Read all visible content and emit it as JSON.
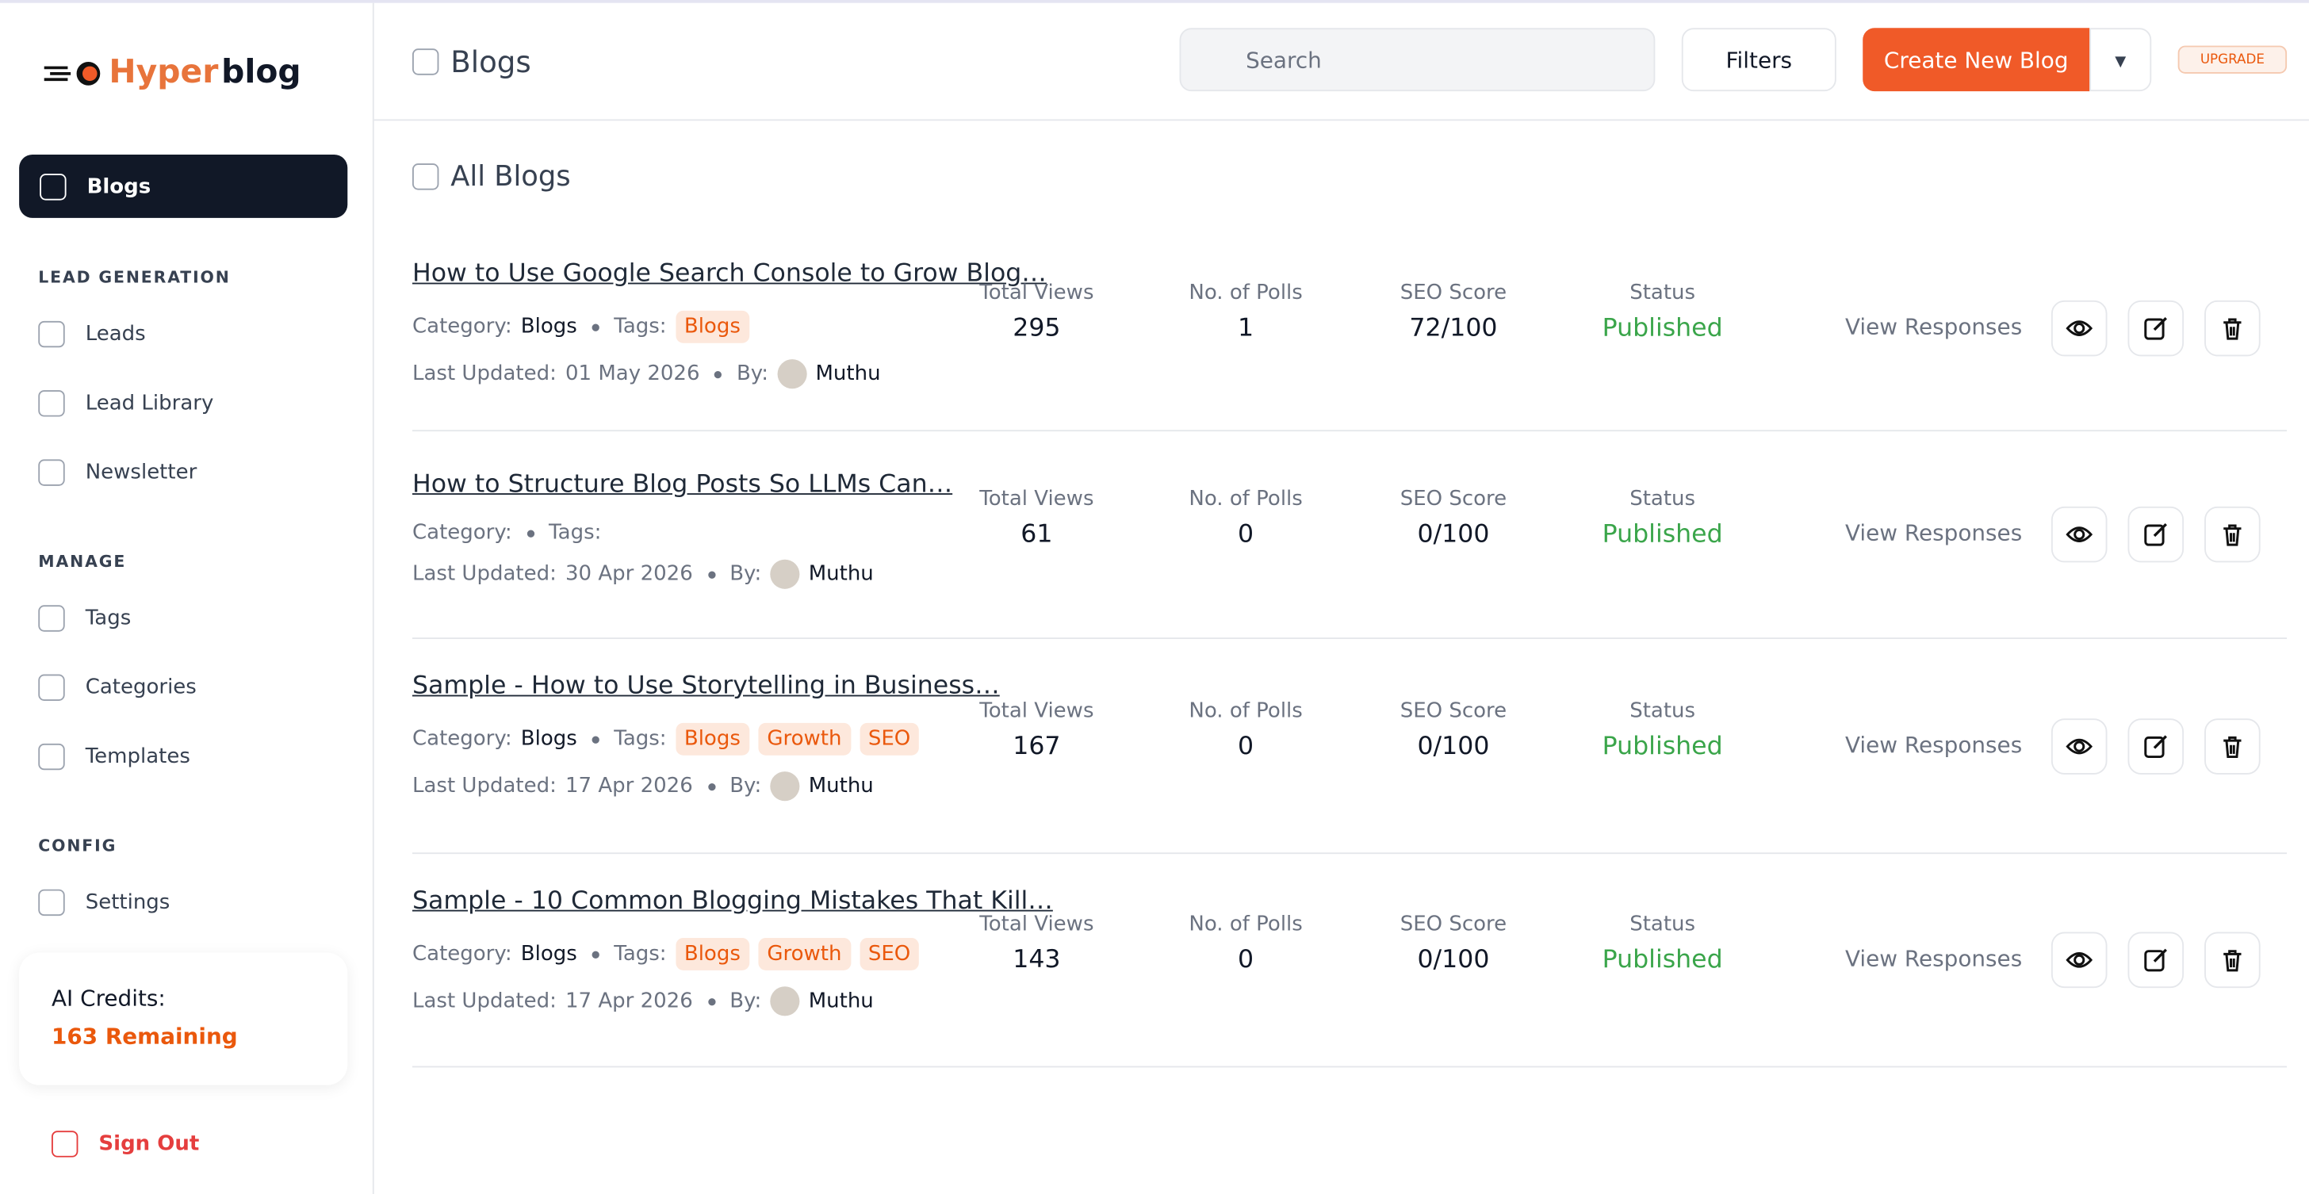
{
  "logo": {
    "part1": "Hyper",
    "part2": "blog"
  },
  "sidebar": {
    "active": "Blogs",
    "sections": [
      {
        "title": "LEAD GENERATION",
        "items": [
          "Leads",
          "Lead Library",
          "Newsletter"
        ]
      },
      {
        "title": "MANAGE",
        "items": [
          "Tags",
          "Categories",
          "Templates"
        ]
      },
      {
        "title": "CONFIG",
        "items": [
          "Settings"
        ]
      }
    ],
    "credits": {
      "label": "AI Credits:",
      "value": "163 Remaining"
    },
    "signout": "Sign Out"
  },
  "header": {
    "title": "Blogs",
    "search": "Search",
    "filters": "Filters",
    "create": "Create New Blog",
    "upgrade": "UPGRADE"
  },
  "main": {
    "heading": "All Blogs",
    "labels": {
      "category": "Category:",
      "tags": "Tags:",
      "updated": "Last Updated:",
      "by": "By:",
      "views": "Total Views",
      "polls": "No. of Polls",
      "seo": "SEO Score",
      "status": "Status",
      "responses": "View Responses"
    },
    "rows": [
      {
        "title": "How to Use Google Search Console to Grow Blog…",
        "category": "Blogs",
        "tags": [
          "Blogs"
        ],
        "updated": "01 May 2026",
        "author": "Muthu",
        "views": 295,
        "polls": 1,
        "seo": "72/100",
        "status": "Published"
      },
      {
        "title": "How to Structure Blog Posts So LLMs Can…",
        "tags": [],
        "updated": "30 Apr 2026",
        "author": "Muthu",
        "views": 61,
        "polls": 0,
        "seo": "0/100",
        "status": "Published"
      },
      {
        "title": "Sample - How to Use Storytelling in Business…",
        "category": "Blogs",
        "tags": [
          "Blogs",
          "Growth",
          "SEO"
        ],
        "updated": "17 Apr 2026",
        "author": "Muthu",
        "views": 167,
        "polls": 0,
        "seo": "0/100",
        "status": "Published"
      },
      {
        "title": "Sample - 10 Common Blogging Mistakes That Kill…",
        "category": "Blogs",
        "tags": [
          "Blogs",
          "Growth",
          "SEO"
        ],
        "updated": "17 Apr 2026",
        "author": "Muthu",
        "views": 143,
        "polls": 0,
        "seo": "0/100",
        "status": "Published"
      }
    ]
  }
}
